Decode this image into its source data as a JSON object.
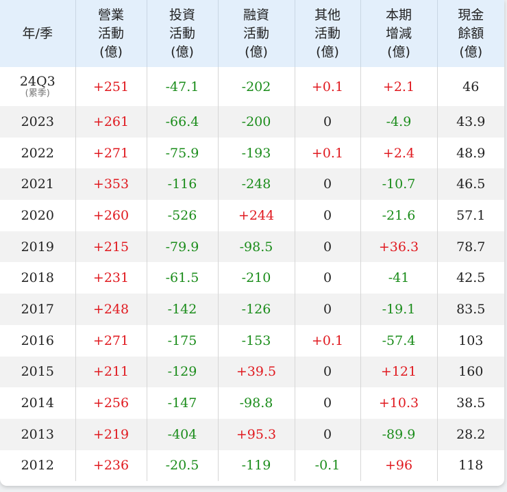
{
  "headers": [
    {
      "l1": "年/季",
      "l2": "",
      "l3": ""
    },
    {
      "l1": "營業",
      "l2": "活動",
      "l3": "(億)"
    },
    {
      "l1": "投資",
      "l2": "活動",
      "l3": "(億)"
    },
    {
      "l1": "融資",
      "l2": "活動",
      "l3": "(億)"
    },
    {
      "l1": "其他",
      "l2": "活動",
      "l3": "(億)"
    },
    {
      "l1": "本期",
      "l2": "增減",
      "l3": "(億)"
    },
    {
      "l1": "現金",
      "l2": "餘額",
      "l3": "(億)"
    }
  ],
  "rows": [
    {
      "period": "24Q3",
      "sub": "(累季)",
      "op": "+251",
      "inv": "-47.1",
      "fin": "-202",
      "other": "+0.1",
      "chg": "+2.1",
      "bal": "46"
    },
    {
      "period": "2023",
      "sub": "",
      "op": "+261",
      "inv": "-66.4",
      "fin": "-200",
      "other": "0",
      "chg": "-4.9",
      "bal": "43.9"
    },
    {
      "period": "2022",
      "sub": "",
      "op": "+271",
      "inv": "-75.9",
      "fin": "-193",
      "other": "+0.1",
      "chg": "+2.4",
      "bal": "48.9"
    },
    {
      "period": "2021",
      "sub": "",
      "op": "+353",
      "inv": "-116",
      "fin": "-248",
      "other": "0",
      "chg": "-10.7",
      "bal": "46.5"
    },
    {
      "period": "2020",
      "sub": "",
      "op": "+260",
      "inv": "-526",
      "fin": "+244",
      "other": "0",
      "chg": "-21.6",
      "bal": "57.1"
    },
    {
      "period": "2019",
      "sub": "",
      "op": "+215",
      "inv": "-79.9",
      "fin": "-98.5",
      "other": "0",
      "chg": "+36.3",
      "bal": "78.7"
    },
    {
      "period": "2018",
      "sub": "",
      "op": "+231",
      "inv": "-61.5",
      "fin": "-210",
      "other": "0",
      "chg": "-41",
      "bal": "42.5"
    },
    {
      "period": "2017",
      "sub": "",
      "op": "+248",
      "inv": "-142",
      "fin": "-126",
      "other": "0",
      "chg": "-19.1",
      "bal": "83.5"
    },
    {
      "period": "2016",
      "sub": "",
      "op": "+271",
      "inv": "-175",
      "fin": "-153",
      "other": "+0.1",
      "chg": "-57.4",
      "bal": "103"
    },
    {
      "period": "2015",
      "sub": "",
      "op": "+211",
      "inv": "-129",
      "fin": "+39.5",
      "other": "0",
      "chg": "+121",
      "bal": "160"
    },
    {
      "period": "2014",
      "sub": "",
      "op": "+256",
      "inv": "-147",
      "fin": "-98.8",
      "other": "0",
      "chg": "+10.3",
      "bal": "38.5"
    },
    {
      "period": "2013",
      "sub": "",
      "op": "+219",
      "inv": "-404",
      "fin": "+95.3",
      "other": "0",
      "chg": "-89.9",
      "bal": "28.2"
    },
    {
      "period": "2012",
      "sub": "",
      "op": "+236",
      "inv": "-20.5",
      "fin": "-119",
      "other": "-0.1",
      "chg": "+96",
      "bal": "118"
    }
  ],
  "colors": {
    "positive": "#e0191f",
    "negative": "#1a8c1a",
    "header_bg": "#e3effb",
    "stripe": "#f2f2f2"
  }
}
